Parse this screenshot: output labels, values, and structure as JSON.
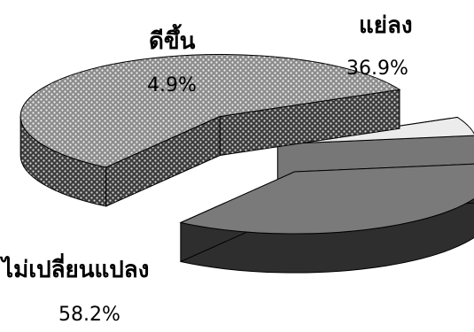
{
  "chart_data": {
    "type": "pie",
    "style": "3d-exploded",
    "title": "",
    "categories": [
      "แย่ลง",
      "ไม่เปลี่ยนแปลง",
      "ดีขึ้น"
    ],
    "values": [
      36.9,
      58.2,
      4.9
    ],
    "value_labels": [
      "36.9%",
      "58.2%",
      "4.9%"
    ],
    "slices": [
      {
        "name": "แย่ลง",
        "value": 36.9,
        "label": "36.9%",
        "fill": "#7a7a7a",
        "side": "#2e2e2e",
        "pattern": "solid"
      },
      {
        "name": "ไม่เปลี่ยนแปลง",
        "value": 58.2,
        "label": "58.2%",
        "fill": "#9a9a9a",
        "side": "#555555",
        "pattern": "dotted"
      },
      {
        "name": "ดีขึ้น",
        "value": 4.9,
        "label": "4.9%",
        "fill": "#ececec",
        "side": "#777777",
        "pattern": "solid"
      }
    ],
    "legend": "none"
  }
}
